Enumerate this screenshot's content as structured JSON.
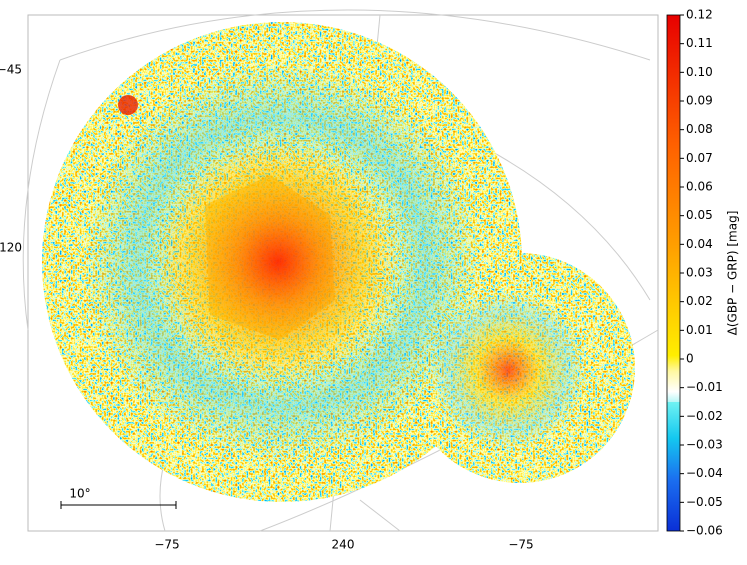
{
  "chart_data": {
    "type": "map",
    "colorbar_label": "Δ(GBP − GRP) [mag]",
    "clim": [
      -0.06,
      0.12
    ],
    "cticks": [
      {
        "value": -0.06,
        "label": "−0.06"
      },
      {
        "value": -0.05,
        "label": "−0.05"
      },
      {
        "value": -0.04,
        "label": "−0.04"
      },
      {
        "value": -0.03,
        "label": "−0.03"
      },
      {
        "value": -0.02,
        "label": "−0.02"
      },
      {
        "value": -0.01,
        "label": "−0.01"
      },
      0,
      0.01,
      0.02,
      0.03,
      0.04,
      0.05,
      0.06,
      0.07,
      0.08,
      0.09,
      {
        "value": 0.1,
        "label": "0.10"
      },
      0.11,
      0.12
    ],
    "y_grid_labels": [
      "−45",
      "120"
    ],
    "x_grid_labels": [
      "−75",
      "240",
      "−75"
    ],
    "scale_bar_label": "10°"
  }
}
